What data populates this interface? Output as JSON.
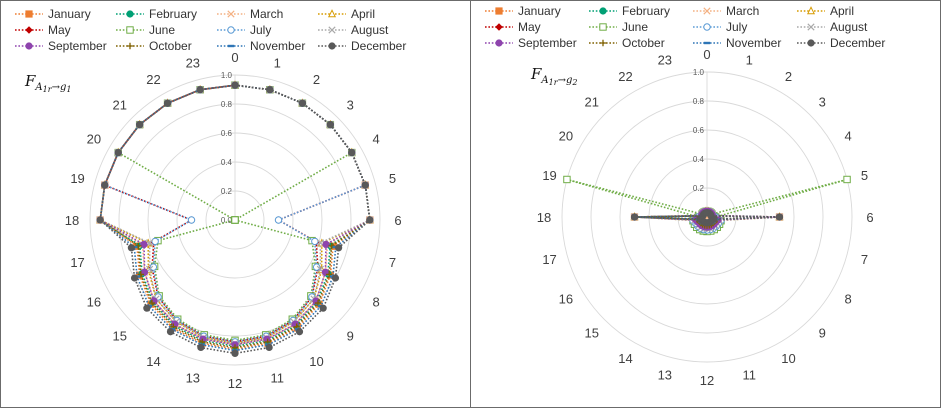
{
  "chart_data": [
    {
      "type": "radar",
      "title": "F_{A1r→g1}",
      "title_parts": {
        "base": "F",
        "sub": "A",
        "subsub": "1r",
        "arrow": "→g",
        "tail": "1"
      },
      "categories": [
        "0",
        "1",
        "2",
        "3",
        "4",
        "5",
        "6",
        "7",
        "8",
        "9",
        "10",
        "11",
        "12",
        "13",
        "14",
        "15",
        "16",
        "17",
        "18",
        "19",
        "20",
        "21",
        "22",
        "23"
      ],
      "r_ticks": [
        "0.0",
        "0.2",
        "0.4",
        "0.6",
        "0.8",
        "1.0"
      ],
      "rlim": [
        0,
        1
      ],
      "series": [
        {
          "name": "January",
          "color": "#ED7D31",
          "marker": "square",
          "values": [
            0.93,
            0.93,
            0.93,
            0.93,
            0.93,
            0.93,
            0.93,
            0.7,
            0.76,
            0.82,
            0.86,
            0.88,
            0.89,
            0.88,
            0.86,
            0.82,
            0.76,
            0.7,
            0.93,
            0.93,
            0.93,
            0.93,
            0.93,
            0.93
          ]
        },
        {
          "name": "February",
          "color": "#00A075",
          "marker": "circle",
          "values": [
            0.93,
            0.93,
            0.93,
            0.93,
            0.93,
            0.93,
            0.93,
            0.68,
            0.74,
            0.8,
            0.84,
            0.86,
            0.87,
            0.86,
            0.84,
            0.8,
            0.74,
            0.68,
            0.93,
            0.93,
            0.93,
            0.93,
            0.93,
            0.93
          ]
        },
        {
          "name": "March",
          "color": "#F4B183",
          "marker": "x",
          "values": [
            0.93,
            0.93,
            0.93,
            0.93,
            0.93,
            0.93,
            0.93,
            0.66,
            0.72,
            0.79,
            0.83,
            0.85,
            0.86,
            0.85,
            0.83,
            0.79,
            0.72,
            0.66,
            0.93,
            0.93,
            0.93,
            0.93,
            0.93,
            0.93
          ]
        },
        {
          "name": "April",
          "color": "#D79B00",
          "marker": "triangle",
          "values": [
            0.93,
            0.93,
            0.93,
            0.93,
            0.93,
            0.93,
            0.93,
            0.62,
            0.69,
            0.77,
            0.81,
            0.84,
            0.85,
            0.84,
            0.81,
            0.77,
            0.69,
            0.62,
            0.93,
            0.93,
            0.93,
            0.93,
            0.93,
            0.93
          ]
        },
        {
          "name": "May",
          "color": "#C00000",
          "marker": "diamond",
          "values": [
            0.93,
            0.93,
            0.93,
            0.93,
            0.93,
            0.93,
            0.3,
            0.58,
            0.66,
            0.75,
            0.8,
            0.83,
            0.84,
            0.83,
            0.8,
            0.75,
            0.66,
            0.58,
            0.3,
            0.93,
            0.93,
            0.93,
            0.93,
            0.93
          ]
        },
        {
          "name": "June",
          "color": "#70AD47",
          "marker": "openSquare",
          "values": [
            0.93,
            0.93,
            0.93,
            0.93,
            0.93,
            0.0,
            0.0,
            0.55,
            0.64,
            0.74,
            0.79,
            0.82,
            0.83,
            0.82,
            0.79,
            0.74,
            0.64,
            0.55,
            0.0,
            0.0,
            0.93,
            0.93,
            0.93,
            0.93
          ]
        },
        {
          "name": "July",
          "color": "#5B9BD5",
          "marker": "openCircle",
          "values": [
            0.93,
            0.93,
            0.93,
            0.93,
            0.93,
            0.93,
            0.3,
            0.57,
            0.65,
            0.75,
            0.8,
            0.83,
            0.84,
            0.83,
            0.8,
            0.75,
            0.65,
            0.57,
            0.3,
            0.93,
            0.93,
            0.93,
            0.93,
            0.93
          ]
        },
        {
          "name": "August",
          "color": "#A9A9A9",
          "marker": "x",
          "values": [
            0.93,
            0.93,
            0.93,
            0.93,
            0.93,
            0.93,
            0.93,
            0.61,
            0.68,
            0.77,
            0.81,
            0.84,
            0.85,
            0.84,
            0.81,
            0.77,
            0.68,
            0.61,
            0.93,
            0.93,
            0.93,
            0.93,
            0.93,
            0.93
          ]
        },
        {
          "name": "September",
          "color": "#8E44AD",
          "marker": "circle",
          "values": [
            0.93,
            0.93,
            0.93,
            0.93,
            0.93,
            0.93,
            0.93,
            0.65,
            0.72,
            0.79,
            0.83,
            0.85,
            0.86,
            0.85,
            0.83,
            0.79,
            0.72,
            0.65,
            0.93,
            0.93,
            0.93,
            0.93,
            0.93,
            0.93
          ]
        },
        {
          "name": "October",
          "color": "#7F6000",
          "marker": "plus",
          "values": [
            0.93,
            0.93,
            0.93,
            0.93,
            0.93,
            0.93,
            0.93,
            0.69,
            0.75,
            0.81,
            0.85,
            0.87,
            0.88,
            0.87,
            0.85,
            0.81,
            0.75,
            0.69,
            0.93,
            0.93,
            0.93,
            0.93,
            0.93,
            0.93
          ]
        },
        {
          "name": "November",
          "color": "#2E75B6",
          "marker": "dash",
          "values": [
            0.93,
            0.93,
            0.93,
            0.93,
            0.93,
            0.93,
            0.93,
            0.72,
            0.78,
            0.84,
            0.87,
            0.89,
            0.9,
            0.89,
            0.87,
            0.84,
            0.78,
            0.72,
            0.93,
            0.93,
            0.93,
            0.93,
            0.93,
            0.93
          ]
        },
        {
          "name": "December",
          "color": "#595959",
          "marker": "circle",
          "values": [
            0.93,
            0.93,
            0.93,
            0.93,
            0.93,
            0.93,
            0.93,
            0.74,
            0.8,
            0.86,
            0.89,
            0.91,
            0.92,
            0.91,
            0.89,
            0.86,
            0.8,
            0.74,
            0.93,
            0.93,
            0.93,
            0.93,
            0.93,
            0.93
          ]
        }
      ]
    },
    {
      "type": "radar",
      "title": "F_{A1r→g2}",
      "title_parts": {
        "base": "F",
        "sub": "A",
        "subsub": "1r",
        "arrow": "→g",
        "tail": "2"
      },
      "categories": [
        "0",
        "1",
        "2",
        "3",
        "4",
        "5",
        "6",
        "7",
        "8",
        "9",
        "10",
        "11",
        "12",
        "13",
        "14",
        "15",
        "16",
        "17",
        "18",
        "19",
        "20",
        "21",
        "22",
        "23"
      ],
      "r_ticks": [
        "0.0",
        "0.2",
        "0.4",
        "0.6",
        "0.8",
        "1.0"
      ],
      "rlim": [
        0,
        1
      ],
      "series": [
        {
          "name": "January",
          "color": "#ED7D31",
          "marker": "square",
          "values": [
            0.03,
            0.03,
            0.03,
            0.03,
            0.03,
            0.03,
            0.5,
            0.06,
            0.05,
            0.05,
            0.05,
            0.05,
            0.05,
            0.05,
            0.05,
            0.05,
            0.05,
            0.06,
            0.5,
            0.03,
            0.03,
            0.03,
            0.03,
            0.03
          ]
        },
        {
          "name": "February",
          "color": "#00A075",
          "marker": "circle",
          "values": [
            0.03,
            0.03,
            0.03,
            0.03,
            0.03,
            0.03,
            0.5,
            0.07,
            0.06,
            0.06,
            0.06,
            0.06,
            0.06,
            0.06,
            0.06,
            0.06,
            0.06,
            0.07,
            0.5,
            0.03,
            0.03,
            0.03,
            0.03,
            0.03
          ]
        },
        {
          "name": "March",
          "color": "#F4B183",
          "marker": "x",
          "values": [
            0.03,
            0.03,
            0.03,
            0.03,
            0.03,
            0.03,
            0.5,
            0.08,
            0.07,
            0.07,
            0.07,
            0.07,
            0.07,
            0.07,
            0.07,
            0.07,
            0.07,
            0.08,
            0.5,
            0.03,
            0.03,
            0.03,
            0.03,
            0.03
          ]
        },
        {
          "name": "April",
          "color": "#D79B00",
          "marker": "triangle",
          "values": [
            0.04,
            0.04,
            0.04,
            0.04,
            0.04,
            0.04,
            0.5,
            0.09,
            0.08,
            0.08,
            0.08,
            0.08,
            0.08,
            0.08,
            0.08,
            0.08,
            0.08,
            0.09,
            0.5,
            0.04,
            0.04,
            0.04,
            0.04,
            0.04
          ]
        },
        {
          "name": "May",
          "color": "#C00000",
          "marker": "diamond",
          "values": [
            0.04,
            0.04,
            0.04,
            0.04,
            0.04,
            0.04,
            0.06,
            0.1,
            0.09,
            0.09,
            0.09,
            0.09,
            0.09,
            0.09,
            0.09,
            0.09,
            0.09,
            0.1,
            0.06,
            0.04,
            0.04,
            0.04,
            0.04,
            0.04
          ]
        },
        {
          "name": "June",
          "color": "#70AD47",
          "marker": "openSquare",
          "values": [
            0.04,
            0.04,
            0.04,
            0.04,
            0.04,
            1.0,
            0.06,
            0.1,
            0.1,
            0.1,
            0.1,
            0.1,
            0.1,
            0.1,
            0.1,
            0.1,
            0.1,
            0.1,
            0.06,
            1.0,
            0.04,
            0.04,
            0.04,
            0.04
          ]
        },
        {
          "name": "July",
          "color": "#5B9BD5",
          "marker": "openCircle",
          "values": [
            0.04,
            0.04,
            0.04,
            0.04,
            0.04,
            0.04,
            0.06,
            0.1,
            0.09,
            0.09,
            0.09,
            0.09,
            0.09,
            0.09,
            0.09,
            0.09,
            0.09,
            0.1,
            0.06,
            0.04,
            0.04,
            0.04,
            0.04,
            0.04
          ]
        },
        {
          "name": "August",
          "color": "#A9A9A9",
          "marker": "x",
          "values": [
            0.04,
            0.04,
            0.04,
            0.04,
            0.04,
            0.04,
            0.5,
            0.09,
            0.08,
            0.08,
            0.08,
            0.08,
            0.08,
            0.08,
            0.08,
            0.08,
            0.08,
            0.09,
            0.5,
            0.04,
            0.04,
            0.04,
            0.04,
            0.04
          ]
        },
        {
          "name": "September",
          "color": "#8E44AD",
          "marker": "circle",
          "values": [
            0.04,
            0.04,
            0.04,
            0.04,
            0.04,
            0.04,
            0.5,
            0.08,
            0.07,
            0.07,
            0.07,
            0.07,
            0.07,
            0.07,
            0.07,
            0.07,
            0.07,
            0.08,
            0.5,
            0.04,
            0.04,
            0.04,
            0.04,
            0.04
          ]
        },
        {
          "name": "October",
          "color": "#7F6000",
          "marker": "plus",
          "values": [
            0.03,
            0.03,
            0.03,
            0.03,
            0.03,
            0.03,
            0.5,
            0.07,
            0.06,
            0.06,
            0.06,
            0.06,
            0.06,
            0.06,
            0.06,
            0.06,
            0.06,
            0.07,
            0.5,
            0.03,
            0.03,
            0.03,
            0.03,
            0.03
          ]
        },
        {
          "name": "November",
          "color": "#2E75B6",
          "marker": "dash",
          "values": [
            0.03,
            0.03,
            0.03,
            0.03,
            0.03,
            0.03,
            0.5,
            0.06,
            0.05,
            0.05,
            0.05,
            0.05,
            0.05,
            0.05,
            0.05,
            0.05,
            0.05,
            0.06,
            0.5,
            0.03,
            0.03,
            0.03,
            0.03,
            0.03
          ]
        },
        {
          "name": "December",
          "color": "#595959",
          "marker": "circle",
          "values": [
            0.03,
            0.03,
            0.03,
            0.03,
            0.03,
            0.03,
            0.5,
            0.05,
            0.04,
            0.04,
            0.04,
            0.04,
            0.04,
            0.04,
            0.04,
            0.04,
            0.04,
            0.05,
            0.5,
            0.03,
            0.03,
            0.03,
            0.03,
            0.03
          ]
        }
      ]
    }
  ]
}
